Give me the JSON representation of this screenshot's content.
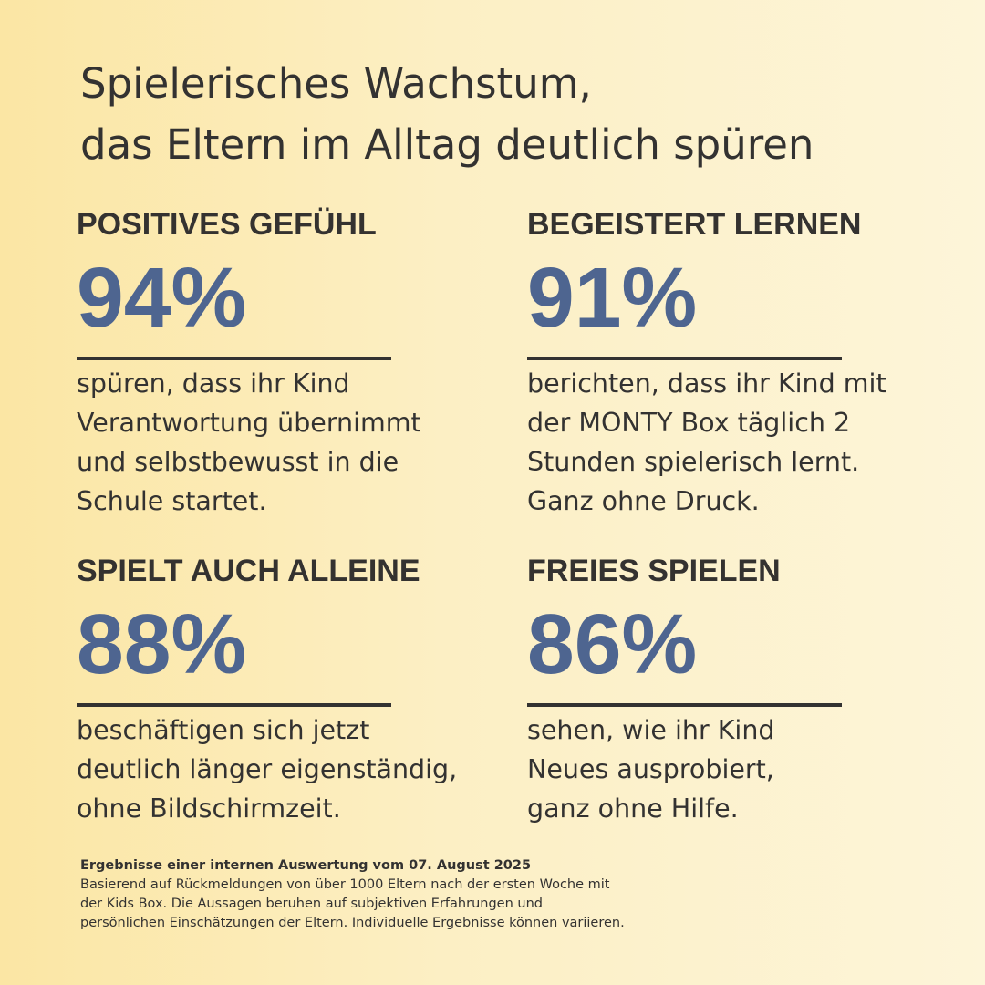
{
  "headline": {
    "line1": "Spielerisches Wachstum,",
    "line2": "das Eltern im Alltag deutlich spüren"
  },
  "stats": [
    {
      "title": "POSITIVES GEFÜHL",
      "value": "94%",
      "lines": [
        "spüren, dass ihr Kind",
        "Verantwortung übernimmt",
        "und selbstbewusst in die",
        "Schule startet."
      ]
    },
    {
      "title": "BEGEISTERT LERNEN",
      "value": "91%",
      "lines": [
        "berichten, dass ihr Kind mit",
        "der MONTY Box täglich 2",
        "Stunden spielerisch lernt.",
        "Ganz ohne Druck."
      ]
    },
    {
      "title": "SPIELT AUCH ALLEINE",
      "value": "88%",
      "lines": [
        "beschäftigen sich jetzt",
        "deutlich länger eigenständig,",
        "ohne Bildschirmzeit."
      ]
    },
    {
      "title": "FREIES SPIELEN",
      "value": "86%",
      "lines": [
        "sehen, wie ihr Kind",
        "Neues ausprobiert,",
        "ganz ohne Hilfe."
      ]
    }
  ],
  "footnote": {
    "title": "Ergebnisse einer internen Auswertung vom 07. August 2025",
    "lines": [
      "Basierend auf Rückmeldungen von über 1000 Eltern nach der ersten Woche mit",
      "der Kids Box.  Die Aussagen beruhen auf subjektiven Erfahrungen und",
      "persönlichen Einschätzungen der Eltern.  Individuelle Ergebnisse können variieren."
    ]
  },
  "colors": {
    "accent": "#4e6590",
    "text": "#333231",
    "background_left": "#fbe6a4",
    "background_right": "#fdf5d9"
  }
}
